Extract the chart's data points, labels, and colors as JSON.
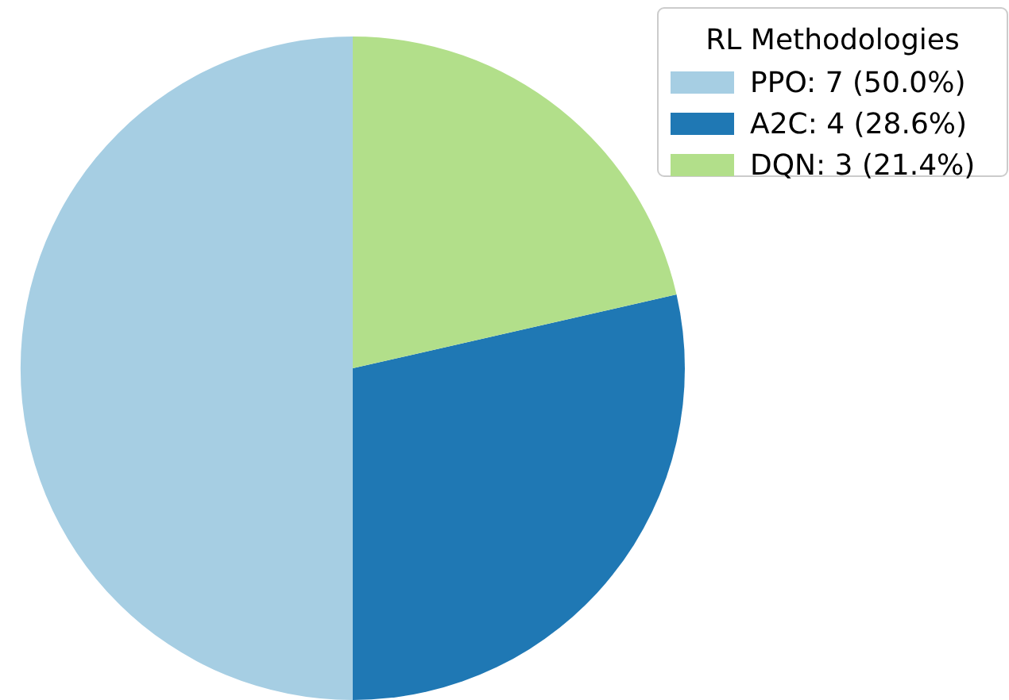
{
  "chart_data": {
    "type": "pie",
    "legend_title": "RL Methodologies",
    "categories": [
      "PPO: 7 (50.0%)",
      "A2C: 4 (28.6%)",
      "DQN: 3 (21.4%)"
    ],
    "values": [
      7,
      4,
      3
    ],
    "colors": [
      "#a6cee3",
      "#1f78b4",
      "#b2df8a"
    ],
    "legend": "top right"
  }
}
